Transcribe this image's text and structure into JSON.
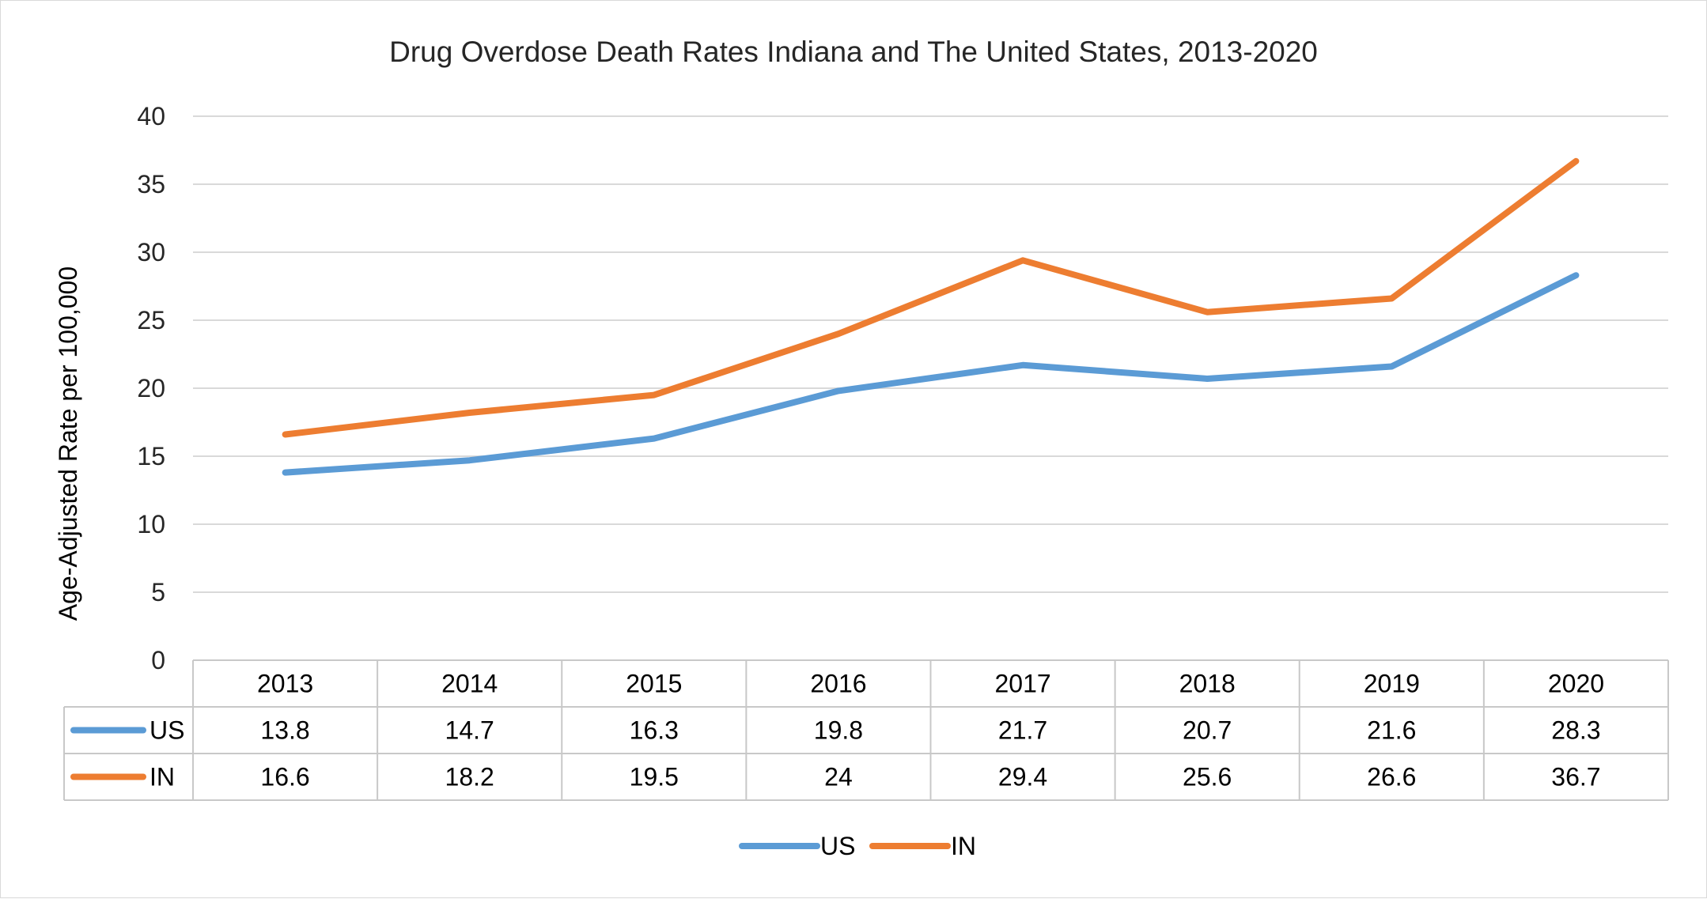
{
  "chart_data": {
    "type": "line",
    "title": "Drug Overdose Death Rates Indiana and The United States, 2013-2020",
    "xlabel": "",
    "ylabel": "Age-Adjusted Rate per 100,000",
    "ylim": [
      0,
      40
    ],
    "yticks": [
      0,
      5,
      10,
      15,
      20,
      25,
      30,
      35,
      40
    ],
    "grid": true,
    "data_table": true,
    "legend_position": "bottom",
    "categories": [
      "2013",
      "2014",
      "2015",
      "2016",
      "2017",
      "2018",
      "2019",
      "2020"
    ],
    "series": [
      {
        "name": "US",
        "color": "#5b9bd5",
        "values": [
          13.8,
          14.7,
          16.3,
          19.8,
          21.7,
          20.7,
          21.6,
          28.3
        ],
        "labels": [
          "13.8",
          "14.7",
          "16.3",
          "19.8",
          "21.7",
          "20.7",
          "21.6",
          "28.3"
        ]
      },
      {
        "name": "IN",
        "color": "#ed7d31",
        "values": [
          16.6,
          18.2,
          19.5,
          24,
          29.4,
          25.6,
          26.6,
          36.7
        ],
        "labels": [
          "16.6",
          "18.2",
          "19.5",
          "24",
          "29.4",
          "25.6",
          "26.6",
          "36.7"
        ]
      }
    ]
  }
}
